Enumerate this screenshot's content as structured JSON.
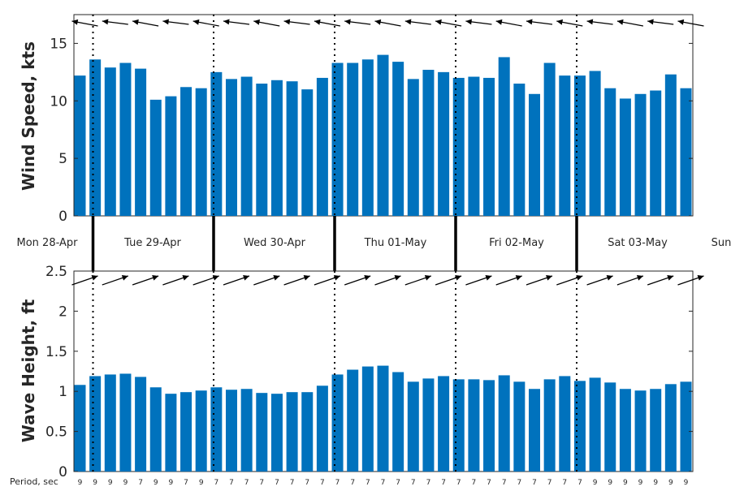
{
  "chart_data": [
    {
      "type": "bar",
      "ylabel": "Wind Speed, kts",
      "ylim": [
        0,
        17.5
      ],
      "yticks": [
        0,
        5,
        10,
        15
      ],
      "bar_color": "#0072BD",
      "values": [
        12.2,
        13.6,
        12.9,
        13.3,
        12.8,
        10.1,
        10.4,
        11.2,
        11.1,
        12.5,
        11.9,
        12.1,
        11.5,
        11.8,
        11.7,
        11.0,
        12.0,
        13.3,
        13.3,
        13.6,
        14.0,
        13.4,
        11.9,
        12.7,
        12.5,
        12.0,
        12.1,
        12.0,
        13.8,
        11.5,
        10.6,
        13.3,
        12.2,
        12.2,
        12.6,
        11.1,
        10.2,
        10.6,
        10.9,
        12.3,
        11.1
      ],
      "direction_arrows": "wind direction arrows above each day tick (pointing left / west)",
      "grid": false
    },
    {
      "type": "bar",
      "ylabel": "Wave Height, ft",
      "ylim": [
        0,
        2.5
      ],
      "yticks": [
        0,
        0.5,
        1,
        1.5,
        2,
        2.5
      ],
      "bar_color": "#0072BD",
      "values": [
        1.08,
        1.19,
        1.21,
        1.22,
        1.18,
        1.05,
        0.97,
        0.99,
        1.01,
        1.05,
        1.02,
        1.03,
        0.98,
        0.97,
        0.99,
        0.99,
        1.07,
        1.21,
        1.27,
        1.31,
        1.32,
        1.24,
        1.12,
        1.16,
        1.19,
        1.15,
        1.15,
        1.14,
        1.2,
        1.12,
        1.03,
        1.15,
        1.19,
        1.13,
        1.17,
        1.11,
        1.03,
        1.01,
        1.03,
        1.09,
        1.12
      ],
      "direction_arrows": "wave direction arrows at top (pointing up-right)",
      "grid": false
    }
  ],
  "days": [
    "Mon 28-Apr",
    "Tue 29-Apr",
    "Wed 30-Apr",
    "Thu 01-May",
    "Fri 02-May",
    "Sat 03-May",
    "Sun"
  ],
  "period_label": "Period, sec",
  "periods": [
    "9",
    "9",
    "9",
    "9",
    "7",
    "9",
    "9",
    "7",
    "9",
    "7",
    "7",
    "7",
    "7",
    "7",
    "7",
    "7",
    "7",
    "7",
    "7",
    "7",
    "7",
    "7",
    "7",
    "7",
    "7",
    "7",
    "7",
    "7",
    "7",
    "7",
    "7",
    "7",
    "7",
    "7",
    "9",
    "9",
    "9",
    "9",
    "9",
    "9",
    "9"
  ]
}
